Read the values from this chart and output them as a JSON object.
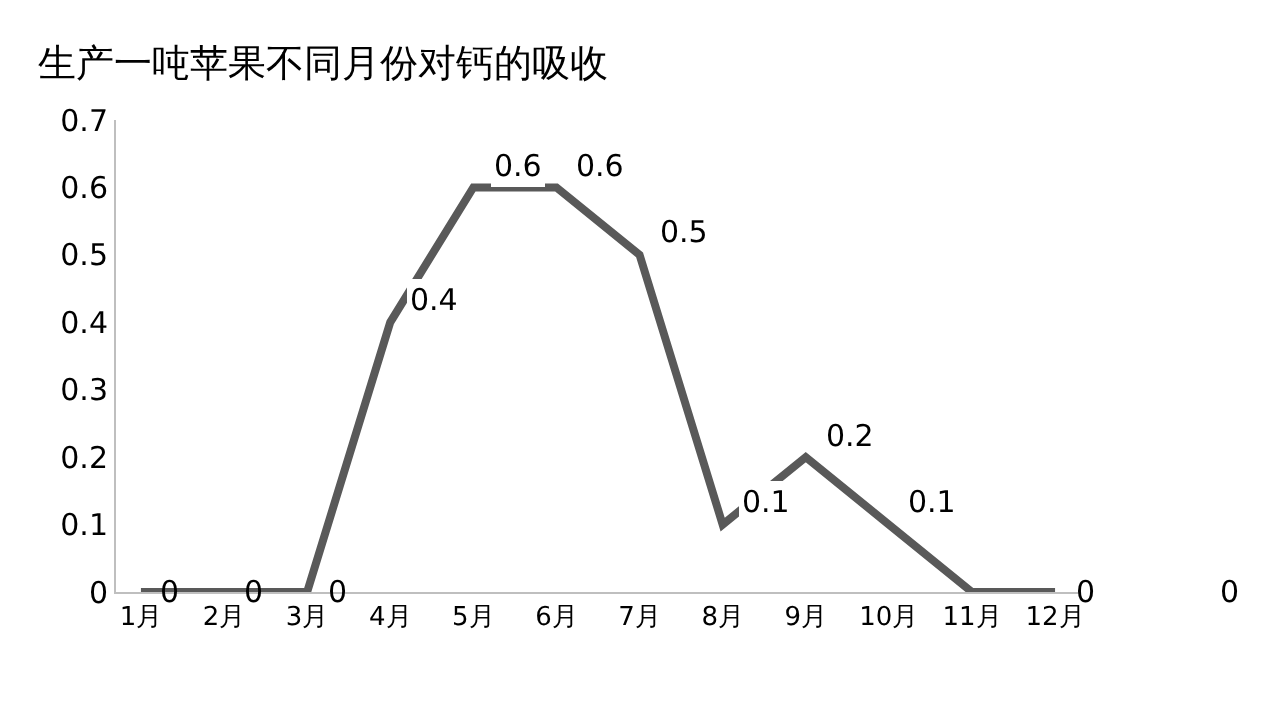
{
  "chart_data": {
    "type": "line",
    "title": "生产一吨苹果不同月份对钙的吸收",
    "categories": [
      "1月",
      "2月",
      "3月",
      "4月",
      "5月",
      "6月",
      "7月",
      "8月",
      "9月",
      "10月",
      "11月",
      "12月"
    ],
    "series": [
      {
        "color": "#595959",
        "values": [
          0,
          0,
          0,
          0.4,
          0.6,
          0.6,
          0.5,
          0.1,
          0.2,
          0.1,
          0,
          0
        ],
        "value_labels": [
          "0",
          "0",
          "0",
          "0.4",
          "0.6",
          "0.6",
          "0.5",
          "0.1",
          "0.2",
          "0.1",
          null,
          "0"
        ]
      }
    ],
    "ylim": [
      0,
      0.7
    ],
    "yticks": [
      0,
      0.1,
      0.2,
      0.3,
      0.4,
      0.5,
      0.6,
      0.7
    ],
    "annotations": [
      "0"
    ],
    "marker": "none",
    "line_style": "solid"
  }
}
